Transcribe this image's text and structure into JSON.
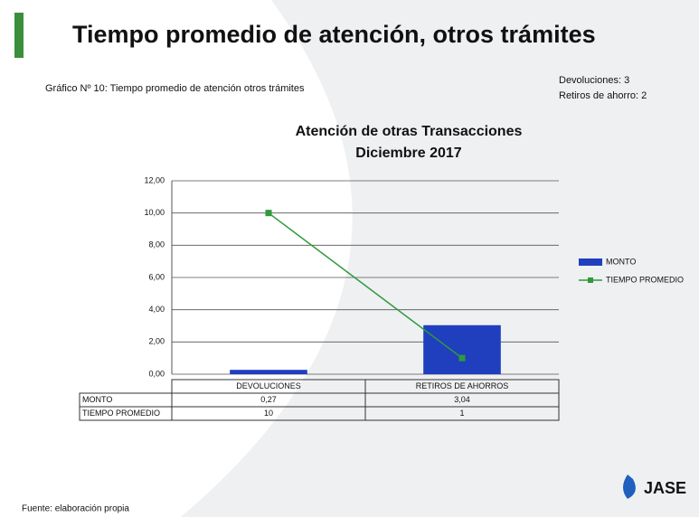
{
  "slide": {
    "title": "Tiempo promedio de atención, otros trámites",
    "caption": "Gráfico Nº 10: Tiempo promedio de atención otros trámites",
    "notes": [
      "Devoluciones: 3",
      "Retiros de ahorro: 2"
    ],
    "footer": "Fuente: elaboración propia",
    "logo": "JASE"
  },
  "chart_data": {
    "type": "bar",
    "title": "Atención de otras  Transacciones",
    "subtitle": "Diciembre 2017",
    "categories": [
      "DEVOLUCIONES",
      "RETIROS DE AHORROS"
    ],
    "series": [
      {
        "name": "MONTO",
        "type": "bar",
        "color": "#1f3fbf",
        "values": [
          0.27,
          3.04
        ],
        "value_labels": [
          "0,27",
          "3,04"
        ]
      },
      {
        "name": "TIEMPO PROMEDIO",
        "type": "line",
        "color": "#2e9a3a",
        "values": [
          10,
          1
        ]
      }
    ],
    "ylim": [
      0,
      12
    ],
    "yticks": [
      {
        "value": 0,
        "label": "0,00"
      },
      {
        "value": 2,
        "label": "2,00"
      },
      {
        "value": 4,
        "label": "4,00"
      },
      {
        "value": 6,
        "label": "6,00"
      },
      {
        "value": 8,
        "label": "8,00"
      },
      {
        "value": 10,
        "label": "10,00"
      },
      {
        "value": 12,
        "label": "12,00"
      }
    ],
    "grid": true,
    "legend": "right"
  }
}
